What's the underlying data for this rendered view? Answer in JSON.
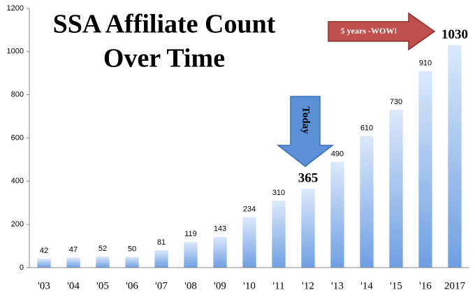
{
  "chart_data": {
    "type": "bar",
    "title_lines": [
      "SSA Affiliate Count",
      "Over Time"
    ],
    "categories": [
      "'03",
      "'04",
      "'05",
      "'06",
      "'07",
      "'08",
      "'09",
      "'10",
      "'11",
      "'12",
      "'13",
      "'14",
      "'15",
      "'16",
      "2017"
    ],
    "values": [
      42,
      47,
      52,
      50,
      81,
      119,
      143,
      234,
      310,
      365,
      490,
      610,
      730,
      910,
      1030
    ],
    "color": "#6f9fe2",
    "ylim": [
      0,
      1200
    ],
    "yticks": [
      0,
      200,
      400,
      600,
      800,
      1000,
      1200
    ],
    "grid": false,
    "emphasized_labels": [
      9,
      14
    ],
    "annotations": [
      {
        "text": "Today"
      },
      {
        "text": "5 years -WOW!"
      }
    ]
  }
}
